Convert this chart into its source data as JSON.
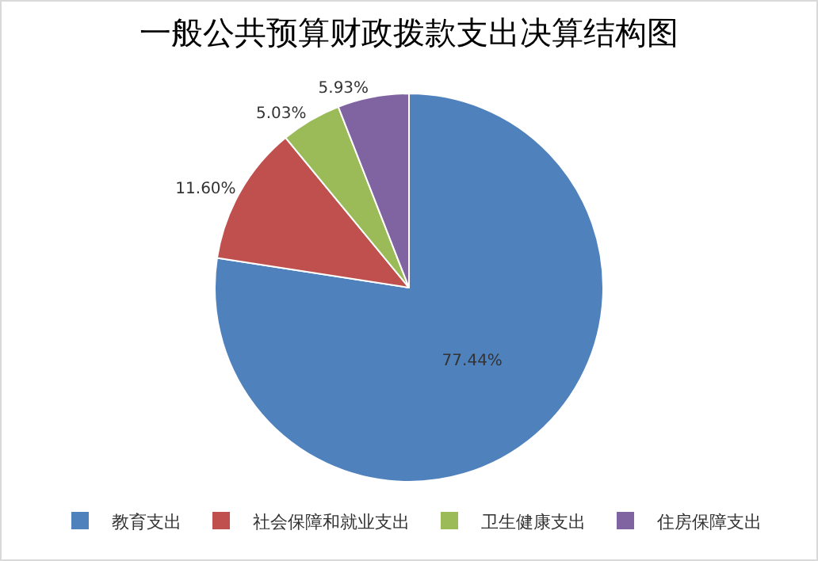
{
  "chart_data": {
    "type": "pie",
    "title": "一般公共预算财政拨款支出决算结构图",
    "categories": [
      "教育支出",
      "社会保障和就业支出",
      "卫生健康支出",
      "住房保障支出"
    ],
    "values": [
      77.44,
      11.6,
      5.03,
      5.93
    ],
    "value_labels": [
      "77.44%",
      "11.60%",
      "5.03%",
      "5.93%"
    ],
    "colors": [
      "#4f81bd",
      "#c0504d",
      "#9bbb59",
      "#8064a2"
    ],
    "legend": "bottom"
  }
}
